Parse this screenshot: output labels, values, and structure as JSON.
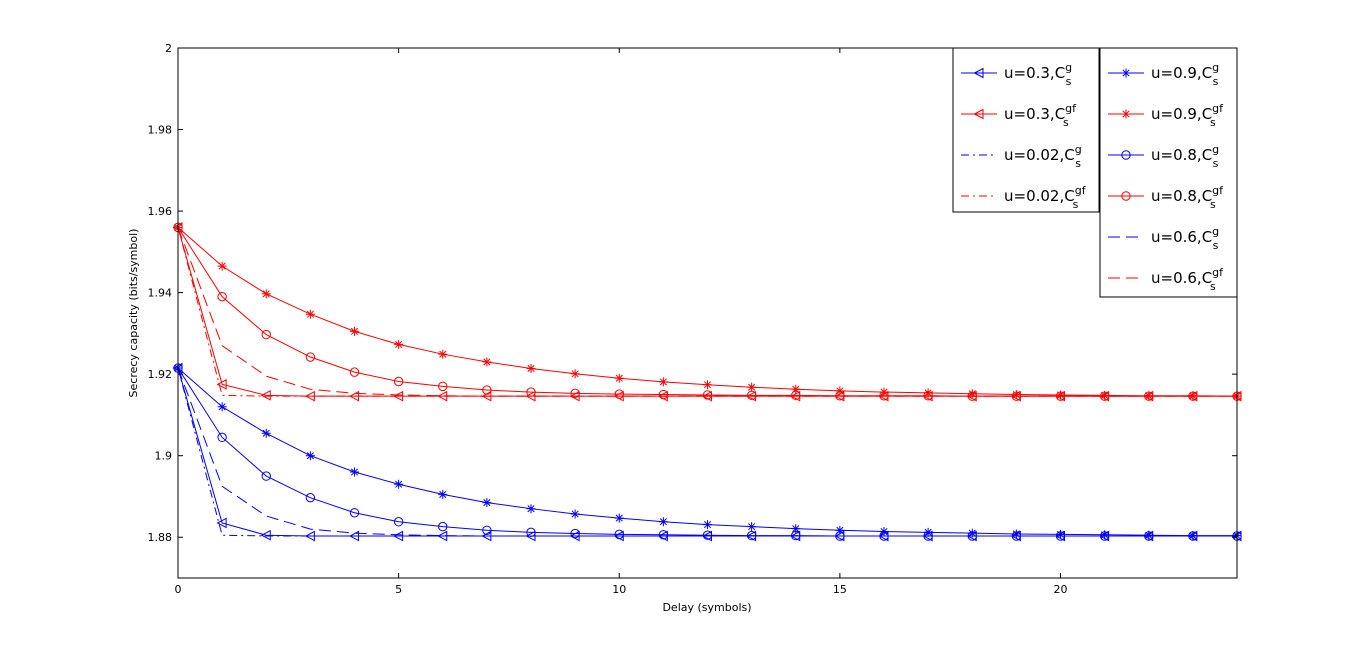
{
  "chart_data": {
    "type": "line",
    "title": "",
    "xlabel": "Delay (symbols)",
    "ylabel": "Secrecy capacity (bits/symbol)",
    "xlim": [
      0,
      24
    ],
    "ylim": [
      1.87,
      2.0
    ],
    "xticks": [
      0,
      5,
      10,
      15,
      20
    ],
    "yticks": [
      1.88,
      1.9,
      1.92,
      1.94,
      1.96,
      1.98,
      2
    ],
    "ytick_labels": [
      "1.88",
      "1.9",
      "1.92",
      "1.94",
      "1.96",
      "1.98",
      "2"
    ],
    "grid": false,
    "legend_placement": "top-right",
    "colors": {
      "blue": "#0000ff",
      "red": "#ff0000"
    },
    "x": [
      0,
      1,
      2,
      3,
      4,
      5,
      6,
      7,
      8,
      9,
      10,
      11,
      12,
      13,
      14,
      15,
      16,
      17,
      18,
      19,
      20,
      21,
      22,
      23,
      24
    ],
    "series": [
      {
        "label_base": "u=0.3,C",
        "sub": "s",
        "sup": "g",
        "color": "blue",
        "dash": "solid",
        "marker": "triangle-left",
        "values": [
          1.9215,
          1.8835,
          1.8805,
          1.8803,
          1.8803,
          1.8803,
          1.8803,
          1.8803,
          1.8803,
          1.8803,
          1.8803,
          1.8803,
          1.8803,
          1.8803,
          1.8803,
          1.8803,
          1.8803,
          1.8803,
          1.8803,
          1.8803,
          1.8803,
          1.8803,
          1.8803,
          1.8803,
          1.8803
        ]
      },
      {
        "label_base": "u=0.3,C",
        "sub": "s",
        "sup": "gf",
        "color": "red",
        "dash": "solid",
        "marker": "triangle-left",
        "values": [
          1.956,
          1.9175,
          1.9148,
          1.9146,
          1.9146,
          1.9146,
          1.9146,
          1.9146,
          1.9146,
          1.9146,
          1.9146,
          1.9146,
          1.9146,
          1.9146,
          1.9146,
          1.9146,
          1.9146,
          1.9146,
          1.9146,
          1.9146,
          1.9146,
          1.9146,
          1.9146,
          1.9146,
          1.9146
        ]
      },
      {
        "label_base": "u=0.02,C",
        "sub": "s",
        "sup": "g",
        "color": "blue",
        "dash": "dashdot",
        "marker": "none",
        "values": [
          1.9215,
          1.8805,
          1.8803,
          1.8803,
          1.8803,
          1.8803,
          1.8803,
          1.8803,
          1.8803,
          1.8803,
          1.8803,
          1.8803,
          1.8803,
          1.8803,
          1.8803,
          1.8803,
          1.8803,
          1.8803,
          1.8803,
          1.8803,
          1.8803,
          1.8803,
          1.8803,
          1.8803,
          1.8803
        ]
      },
      {
        "label_base": "u=0.02,C",
        "sub": "s",
        "sup": "gf",
        "color": "red",
        "dash": "dashdot",
        "marker": "none",
        "values": [
          1.956,
          1.9148,
          1.9146,
          1.9146,
          1.9146,
          1.9146,
          1.9146,
          1.9146,
          1.9146,
          1.9146,
          1.9146,
          1.9146,
          1.9146,
          1.9146,
          1.9146,
          1.9146,
          1.9146,
          1.9146,
          1.9146,
          1.9146,
          1.9146,
          1.9146,
          1.9146,
          1.9146,
          1.9146
        ]
      },
      {
        "label_base": "u=0.9,C",
        "sub": "s",
        "sup": "g",
        "color": "blue",
        "dash": "solid",
        "marker": "star",
        "values": [
          1.9215,
          1.912,
          1.9055,
          1.9,
          1.896,
          1.893,
          1.8905,
          1.8885,
          1.887,
          1.8857,
          1.8847,
          1.8838,
          1.8831,
          1.8826,
          1.8821,
          1.8817,
          1.8814,
          1.8812,
          1.881,
          1.8808,
          1.8807,
          1.8806,
          1.8805,
          1.8804,
          1.8804
        ]
      },
      {
        "label_base": "u=0.9,C",
        "sub": "s",
        "sup": "gf",
        "color": "red",
        "dash": "solid",
        "marker": "star",
        "values": [
          1.956,
          1.9465,
          1.9397,
          1.9347,
          1.9305,
          1.9273,
          1.9249,
          1.923,
          1.9214,
          1.9201,
          1.919,
          1.9181,
          1.9174,
          1.9168,
          1.9163,
          1.9159,
          1.9156,
          1.9154,
          1.9152,
          1.915,
          1.9149,
          1.9148,
          1.9147,
          1.9147,
          1.9146
        ]
      },
      {
        "label_base": "u=0.8,C",
        "sub": "s",
        "sup": "g",
        "color": "blue",
        "dash": "solid",
        "marker": "circle",
        "values": [
          1.9215,
          1.9045,
          1.895,
          1.8897,
          1.886,
          1.8838,
          1.8826,
          1.8817,
          1.8812,
          1.8809,
          1.8807,
          1.8806,
          1.8805,
          1.8804,
          1.8804,
          1.8803,
          1.8803,
          1.8803,
          1.8803,
          1.8803,
          1.8803,
          1.8803,
          1.8803,
          1.8803,
          1.8803
        ]
      },
      {
        "label_base": "u=0.8,C",
        "sub": "s",
        "sup": "gf",
        "color": "red",
        "dash": "solid",
        "marker": "circle",
        "values": [
          1.956,
          1.939,
          1.9297,
          1.9242,
          1.9205,
          1.9182,
          1.917,
          1.9161,
          1.9156,
          1.9153,
          1.9151,
          1.915,
          1.9149,
          1.9148,
          1.9148,
          1.9147,
          1.9147,
          1.9147,
          1.9146,
          1.9146,
          1.9146,
          1.9146,
          1.9146,
          1.9146,
          1.9146
        ]
      },
      {
        "label_base": "u=0.6,C",
        "sub": "s",
        "sup": "g",
        "color": "blue",
        "dash": "dashed",
        "marker": "none",
        "values": [
          1.9215,
          1.8925,
          1.8852,
          1.882,
          1.881,
          1.8806,
          1.8804,
          1.8803,
          1.8803,
          1.8803,
          1.8803,
          1.8803,
          1.8803,
          1.8803,
          1.8803,
          1.8803,
          1.8803,
          1.8803,
          1.8803,
          1.8803,
          1.8803,
          1.8803,
          1.8803,
          1.8803,
          1.8803
        ]
      },
      {
        "label_base": "u=0.6,C",
        "sub": "s",
        "sup": "gf",
        "color": "red",
        "dash": "dashed",
        "marker": "none",
        "values": [
          1.956,
          1.927,
          1.9195,
          1.9163,
          1.9153,
          1.9149,
          1.9147,
          1.9146,
          1.9146,
          1.9146,
          1.9146,
          1.9146,
          1.9146,
          1.9146,
          1.9146,
          1.9146,
          1.9146,
          1.9146,
          1.9146,
          1.9146,
          1.9146,
          1.9146,
          1.9146,
          1.9146,
          1.9146
        ]
      }
    ],
    "legends": [
      {
        "entries": [
          0,
          1,
          2,
          3
        ]
      },
      {
        "entries": [
          4,
          5,
          6,
          7,
          8,
          9
        ]
      }
    ]
  }
}
